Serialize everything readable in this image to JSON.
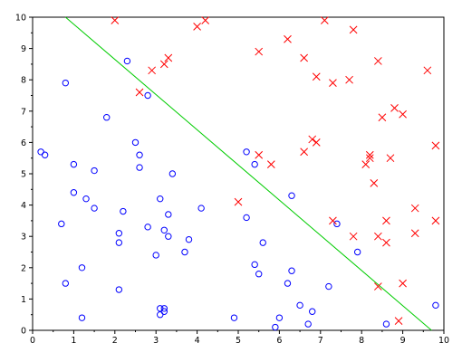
{
  "chart_data": {
    "type": "scatter",
    "title": "",
    "xlabel": "",
    "ylabel": "",
    "xlim": [
      0,
      10
    ],
    "ylim": [
      0,
      10
    ],
    "x_ticks": [
      "0",
      "1",
      "2",
      "3",
      "4",
      "5",
      "6",
      "7",
      "8",
      "9",
      "10"
    ],
    "y_ticks": [
      "0",
      "1",
      "2",
      "3",
      "4",
      "5",
      "6",
      "7",
      "8",
      "9",
      "10"
    ],
    "grid": false,
    "colors": {
      "class_a": "#0000ff",
      "class_b": "#ff0000",
      "boundary": "#00cc00"
    },
    "series": [
      {
        "marker": "circle",
        "color": "#0000ff",
        "points": [
          [
            0.2,
            5.7
          ],
          [
            0.3,
            5.6
          ],
          [
            0.8,
            7.9
          ],
          [
            1.0,
            5.3
          ],
          [
            1.0,
            4.4
          ],
          [
            1.3,
            4.2
          ],
          [
            1.5,
            5.1
          ],
          [
            1.5,
            3.9
          ],
          [
            0.7,
            3.4
          ],
          [
            0.8,
            1.5
          ],
          [
            1.2,
            2.0
          ],
          [
            1.2,
            0.4
          ],
          [
            1.8,
            6.8
          ],
          [
            2.1,
            3.1
          ],
          [
            2.1,
            2.8
          ],
          [
            2.2,
            3.8
          ],
          [
            2.1,
            1.3
          ],
          [
            2.3,
            8.6
          ],
          [
            2.5,
            6.0
          ],
          [
            2.6,
            5.6
          ],
          [
            2.6,
            5.2
          ],
          [
            2.8,
            7.5
          ],
          [
            2.8,
            3.3
          ],
          [
            3.0,
            2.4
          ],
          [
            3.1,
            4.2
          ],
          [
            3.3,
            3.7
          ],
          [
            3.2,
            3.2
          ],
          [
            3.3,
            3.0
          ],
          [
            3.4,
            5.0
          ],
          [
            3.1,
            0.7
          ],
          [
            3.2,
            0.7
          ],
          [
            3.1,
            0.5
          ],
          [
            3.2,
            0.6
          ],
          [
            3.7,
            2.5
          ],
          [
            3.8,
            2.9
          ],
          [
            4.1,
            3.9
          ],
          [
            4.9,
            0.4
          ],
          [
            5.2,
            5.7
          ],
          [
            5.4,
            5.3
          ],
          [
            5.2,
            3.6
          ],
          [
            5.4,
            2.1
          ],
          [
            5.6,
            2.8
          ],
          [
            5.5,
            1.8
          ],
          [
            6.0,
            0.4
          ],
          [
            6.2,
            1.5
          ],
          [
            6.3,
            1.9
          ],
          [
            6.3,
            4.3
          ],
          [
            6.5,
            0.8
          ],
          [
            6.8,
            0.6
          ],
          [
            6.7,
            0.2
          ],
          [
            5.9,
            0.1
          ],
          [
            7.2,
            1.4
          ],
          [
            7.4,
            3.4
          ],
          [
            7.9,
            2.5
          ],
          [
            8.6,
            0.2
          ],
          [
            9.8,
            0.8
          ]
        ]
      },
      {
        "marker": "x",
        "color": "#ff0000",
        "points": [
          [
            2.0,
            9.9
          ],
          [
            4.0,
            9.7
          ],
          [
            4.2,
            9.9
          ],
          [
            3.2,
            8.5
          ],
          [
            3.3,
            8.7
          ],
          [
            2.9,
            8.3
          ],
          [
            2.6,
            7.6
          ],
          [
            5.5,
            8.9
          ],
          [
            6.2,
            9.3
          ],
          [
            6.6,
            8.7
          ],
          [
            7.1,
            9.9
          ],
          [
            7.8,
            9.6
          ],
          [
            6.9,
            8.1
          ],
          [
            7.3,
            7.9
          ],
          [
            7.7,
            8.0
          ],
          [
            8.4,
            8.6
          ],
          [
            9.6,
            8.3
          ],
          [
            8.8,
            7.1
          ],
          [
            8.5,
            6.8
          ],
          [
            9.0,
            6.9
          ],
          [
            6.8,
            6.1
          ],
          [
            6.9,
            6.0
          ],
          [
            6.6,
            5.7
          ],
          [
            5.5,
            5.6
          ],
          [
            5.8,
            5.3
          ],
          [
            8.2,
            5.6
          ],
          [
            8.1,
            5.3
          ],
          [
            8.2,
            5.5
          ],
          [
            8.7,
            5.5
          ],
          [
            9.8,
            5.9
          ],
          [
            8.3,
            4.7
          ],
          [
            5.0,
            4.1
          ],
          [
            7.3,
            3.5
          ],
          [
            8.6,
            3.5
          ],
          [
            9.3,
            3.9
          ],
          [
            9.3,
            3.1
          ],
          [
            9.8,
            3.5
          ],
          [
            7.8,
            3.0
          ],
          [
            8.4,
            3.0
          ],
          [
            8.6,
            2.8
          ],
          [
            8.4,
            1.4
          ],
          [
            9.0,
            1.5
          ],
          [
            8.9,
            0.3
          ]
        ]
      }
    ],
    "boundary_line": {
      "x": [
        0.8,
        9.7
      ],
      "y": [
        10,
        0
      ]
    }
  }
}
